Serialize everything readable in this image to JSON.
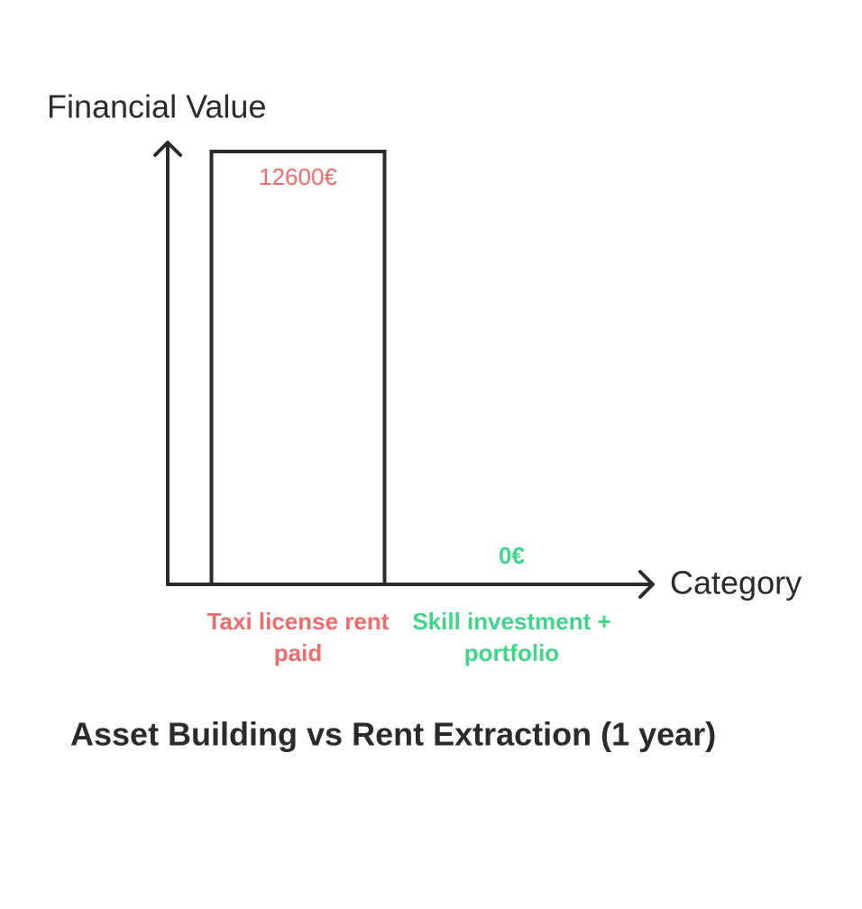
{
  "chart_data": {
    "type": "bar",
    "title": "Asset Building vs Rent Extraction (1 year)",
    "y_label": "Financial Value",
    "x_label": "Category",
    "categories": [
      "Taxi license rent paid",
      "Skill investment + portfolio"
    ],
    "values": [
      12600,
      0
    ],
    "value_labels": [
      "12600€",
      "0€"
    ],
    "label_colors": [
      "#f26b6b",
      "#3ed68a"
    ],
    "color": "#ffffff",
    "edge_color": "#2b2b2b",
    "ylim": [
      0,
      12600
    ]
  }
}
